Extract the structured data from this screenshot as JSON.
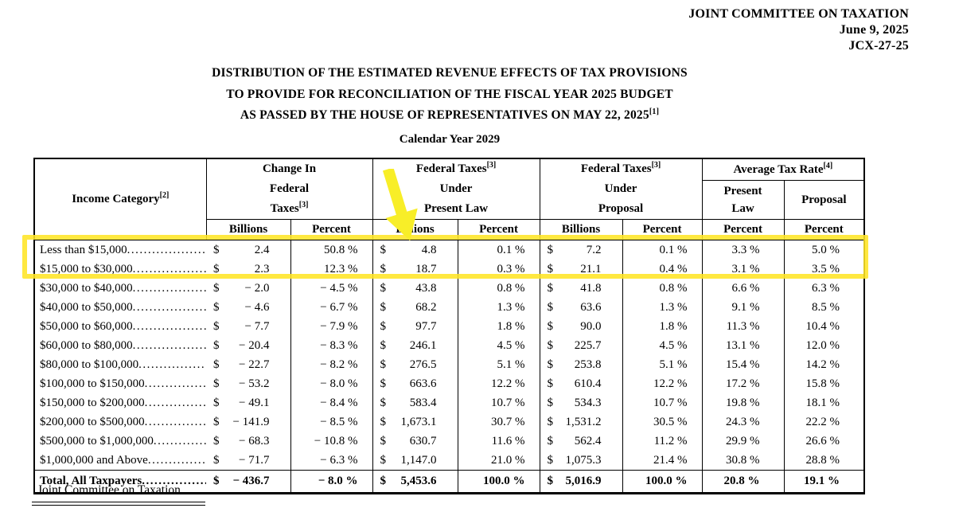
{
  "letterhead": {
    "org": "JOINT COMMITTEE ON TAXATION",
    "date": "June 9, 2025",
    "doc_number": "JCX-27-25"
  },
  "title": {
    "line1": "DISTRIBUTION OF THE ESTIMATED REVENUE EFFECTS OF TAX PROVISIONS",
    "line2": "TO PROVIDE FOR RECONCILIATION OF THE FISCAL YEAR 2025 BUDGET",
    "line3": "AS PASSED BY THE HOUSE OF REPRESENTATIVES ON MAY 22, 2025",
    "line3_sup": "[1]"
  },
  "subtitle": "Calendar Year 2029",
  "footer": "Joint Committee on Taxation",
  "table": {
    "currency_symbol": "$",
    "income_header": {
      "text": "Income Category",
      "sup": "[2]"
    },
    "groups": {
      "change": {
        "l1": "Change In",
        "l2": "Federal",
        "l3": "Taxes",
        "l3_sup": "[3]"
      },
      "present_law": {
        "l1": "Federal Taxes",
        "l1_sup": "[3]",
        "l2": "Under",
        "l3": "Present Law"
      },
      "proposal": {
        "l1": "Federal Taxes",
        "l1_sup": "[3]",
        "l2": "Under",
        "l3": "Proposal"
      },
      "avg_rate": {
        "l1": "Average Tax Rate",
        "l1_sup": "[4]",
        "sub1_l1": "Present",
        "sub1_l2": "Law",
        "sub2": "Proposal"
      }
    },
    "subheaders": [
      "Billions",
      "Percent",
      "Billions",
      "Percent",
      "Billions",
      "Percent",
      "Percent",
      "Percent"
    ],
    "rows": [
      {
        "category": "Less than $15,000",
        "cells": [
          "2.4",
          "50.8 %",
          "4.8",
          "0.1 %",
          "7.2",
          "0.1 %",
          "3.3 %",
          "5.0 %"
        ]
      },
      {
        "category": "$15,000 to $30,000",
        "cells": [
          "2.3",
          "12.3 %",
          "18.7",
          "0.3 %",
          "21.1",
          "0.4 %",
          "3.1 %",
          "3.5 %"
        ]
      },
      {
        "category": "$30,000 to $40,000",
        "cells": [
          "− 2.0",
          "− 4.5 %",
          "43.8",
          "0.8 %",
          "41.8",
          "0.8 %",
          "6.6 %",
          "6.3 %"
        ]
      },
      {
        "category": "$40,000 to $50,000",
        "cells": [
          "− 4.6",
          "− 6.7 %",
          "68.2",
          "1.3 %",
          "63.6",
          "1.3 %",
          "9.1 %",
          "8.5 %"
        ]
      },
      {
        "category": "$50,000 to $60,000",
        "cells": [
          "− 7.7",
          "− 7.9 %",
          "97.7",
          "1.8 %",
          "90.0",
          "1.8 %",
          "11.3 %",
          "10.4 %"
        ]
      },
      {
        "category": "$60,000 to $80,000",
        "cells": [
          "− 20.4",
          "− 8.3 %",
          "246.1",
          "4.5 %",
          "225.7",
          "4.5 %",
          "13.1 %",
          "12.0 %"
        ]
      },
      {
        "category": "$80,000 to $100,000",
        "cells": [
          "− 22.7",
          "− 8.2 %",
          "276.5",
          "5.1 %",
          "253.8",
          "5.1 %",
          "15.4 %",
          "14.2 %"
        ]
      },
      {
        "category": "$100,000 to $150,000",
        "cells": [
          "− 53.2",
          "− 8.0 %",
          "663.6",
          "12.2 %",
          "610.4",
          "12.2 %",
          "17.2 %",
          "15.8 %"
        ]
      },
      {
        "category": "$150,000 to $200,000",
        "cells": [
          "− 49.1",
          "− 8.4 %",
          "583.4",
          "10.7 %",
          "534.3",
          "10.7 %",
          "19.8 %",
          "18.1 %"
        ]
      },
      {
        "category": "$200,000 to $500,000",
        "cells": [
          "− 141.9",
          "− 8.5 %",
          "1,673.1",
          "30.7 %",
          "1,531.2",
          "30.5 %",
          "24.3 %",
          "22.2 %"
        ]
      },
      {
        "category": "$500,000 to $1,000,000",
        "cells": [
          "− 68.3",
          "− 10.8 %",
          "630.7",
          "11.6 %",
          "562.4",
          "11.2 %",
          "29.9 %",
          "26.6 %"
        ]
      },
      {
        "category": "$1,000,000 and Above",
        "cells": [
          "− 71.7",
          "− 6.3 %",
          "1,147.0",
          "21.0 %",
          "1,075.3",
          "21.4 %",
          "30.8 %",
          "28.8 %"
        ]
      }
    ],
    "total_row": {
      "category": "Total, All Taxpayers",
      "cells": [
        "− 436.7",
        "− 8.0 %",
        "5,453.6",
        "100.0 %",
        "5,016.9",
        "100.0 %",
        "20.8 %",
        "19.1 %"
      ]
    }
  },
  "annotations": {
    "highlight_color": "#ffe526",
    "arrow_color": "#f8ee28",
    "highlighted_categories": [
      "Less than $15,000",
      "$15,000 to $30,000"
    ]
  }
}
